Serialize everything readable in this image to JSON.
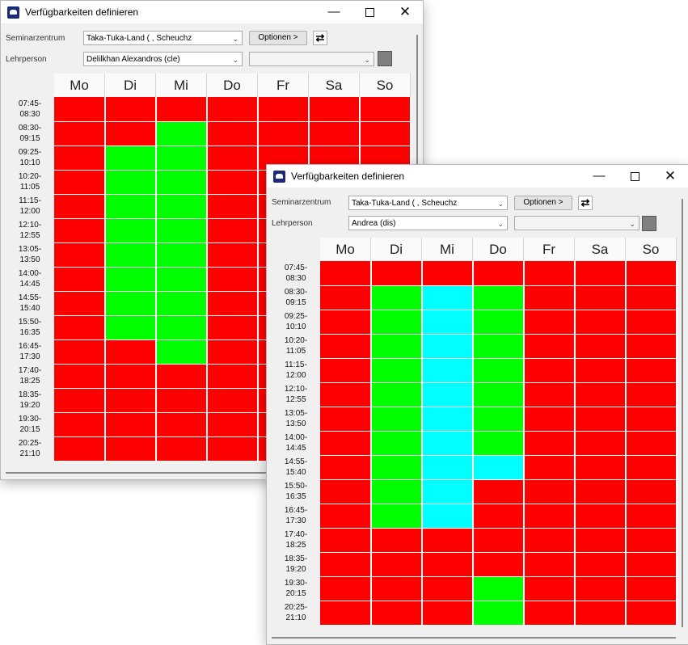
{
  "days": [
    "Mo",
    "Di",
    "Mi",
    "Do",
    "Fr",
    "Sa",
    "So"
  ],
  "times": [
    [
      "07:45-",
      "08:30"
    ],
    [
      "08:30-",
      "09:15"
    ],
    [
      "09:25-",
      "10:10"
    ],
    [
      "10:20-",
      "11:05"
    ],
    [
      "11:15-",
      "12:00"
    ],
    [
      "12:10-",
      "12:55"
    ],
    [
      "13:05-",
      "13:50"
    ],
    [
      "14:00-",
      "14:45"
    ],
    [
      "14:55-",
      "15:40"
    ],
    [
      "15:50-",
      "16:35"
    ],
    [
      "16:45-",
      "17:30"
    ],
    [
      "17:40-",
      "18:25"
    ],
    [
      "18:35-",
      "19:20"
    ],
    [
      "19:30-",
      "20:15"
    ],
    [
      "20:25-",
      "21:10"
    ]
  ],
  "legend_colors": {
    "unavailable": "#ff0000",
    "available": "#00ff00",
    "highlight": "#00ffff"
  },
  "window1": {
    "title": "Verfügbarkeiten definieren",
    "seminarzentrum_label": "Seminarzentrum",
    "seminarzentrum_value": "Taka-Tuka-Land (           , Scheuchz",
    "lehrperson_label": "Lehrperson",
    "lehrperson_value": "Delilkhan Alexandros (cle)",
    "optionen_label": "Optionen >",
    "grid": [
      [
        "R",
        "R",
        "R",
        "R",
        "R",
        "R",
        "R"
      ],
      [
        "R",
        "R",
        "G",
        "R",
        "R",
        "R",
        "R"
      ],
      [
        "R",
        "G",
        "G",
        "R",
        "R",
        "R",
        "R"
      ],
      [
        "R",
        "G",
        "G",
        "R",
        "R",
        "R",
        "R"
      ],
      [
        "R",
        "G",
        "G",
        "R",
        "R",
        "R",
        "R"
      ],
      [
        "R",
        "G",
        "G",
        "R",
        "R",
        "R",
        "R"
      ],
      [
        "R",
        "G",
        "G",
        "R",
        "R",
        "R",
        "R"
      ],
      [
        "R",
        "G",
        "G",
        "R",
        "R",
        "R",
        "R"
      ],
      [
        "R",
        "G",
        "G",
        "R",
        "R",
        "R",
        "R"
      ],
      [
        "R",
        "G",
        "G",
        "R",
        "R",
        "R",
        "R"
      ],
      [
        "R",
        "R",
        "G",
        "R",
        "R",
        "R",
        "R"
      ],
      [
        "R",
        "R",
        "R",
        "R",
        "R",
        "R",
        "R"
      ],
      [
        "R",
        "R",
        "R",
        "R",
        "R",
        "R",
        "R"
      ],
      [
        "R",
        "R",
        "R",
        "R",
        "R",
        "R",
        "R"
      ],
      [
        "R",
        "R",
        "R",
        "R",
        "R",
        "R",
        "R"
      ]
    ]
  },
  "window2": {
    "title": "Verfügbarkeiten definieren",
    "seminarzentrum_label": "Seminarzentrum",
    "seminarzentrum_value": "Taka-Tuka-Land (           , Scheuchz",
    "lehrperson_label": "Lehrperson",
    "lehrperson_value": "Andrea (dis)",
    "optionen_label": "Optionen >",
    "grid": [
      [
        "R",
        "R",
        "R",
        "R",
        "R",
        "R",
        "R"
      ],
      [
        "R",
        "G",
        "C",
        "G",
        "R",
        "R",
        "R"
      ],
      [
        "R",
        "G",
        "C",
        "G",
        "R",
        "R",
        "R"
      ],
      [
        "R",
        "G",
        "C",
        "G",
        "R",
        "R",
        "R"
      ],
      [
        "R",
        "G",
        "C",
        "G",
        "R",
        "R",
        "R"
      ],
      [
        "R",
        "G",
        "C",
        "G",
        "R",
        "R",
        "R"
      ],
      [
        "R",
        "G",
        "C",
        "G",
        "R",
        "R",
        "R"
      ],
      [
        "R",
        "G",
        "C",
        "G",
        "R",
        "R",
        "R"
      ],
      [
        "R",
        "G",
        "C",
        "C",
        "R",
        "R",
        "R"
      ],
      [
        "R",
        "G",
        "C",
        "R",
        "R",
        "R",
        "R"
      ],
      [
        "R",
        "G",
        "C",
        "R",
        "R",
        "R",
        "R"
      ],
      [
        "R",
        "R",
        "R",
        "R",
        "R",
        "R",
        "R"
      ],
      [
        "R",
        "R",
        "R",
        "R",
        "R",
        "R",
        "R"
      ],
      [
        "R",
        "R",
        "R",
        "G",
        "R",
        "R",
        "R"
      ],
      [
        "R",
        "R",
        "R",
        "G",
        "R",
        "R",
        "R"
      ]
    ]
  }
}
